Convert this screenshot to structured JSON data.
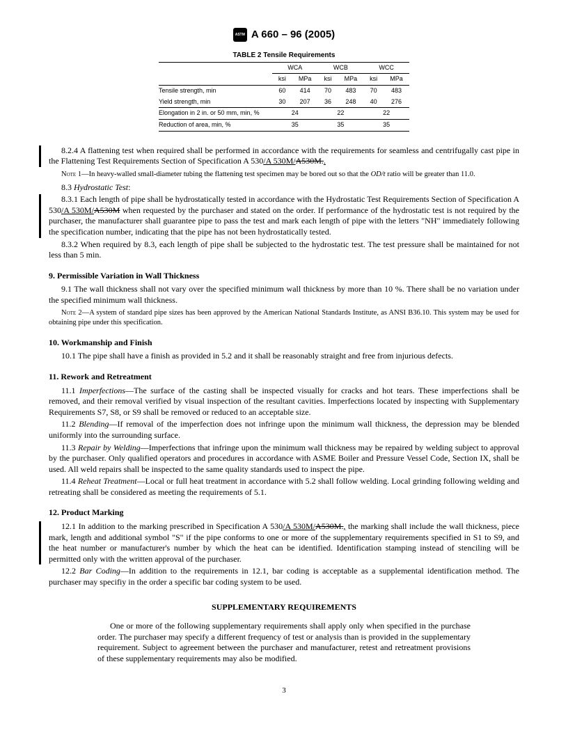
{
  "header": {
    "title": "A 660 – 96 (2005)"
  },
  "table": {
    "caption": "TABLE 2  Tensile Requirements",
    "group_headers": [
      "WCA",
      "WCB",
      "WCC"
    ],
    "sub_headers": [
      "ksi",
      "MPa",
      "ksi",
      "MPa",
      "ksi",
      "MPa"
    ],
    "rows": [
      {
        "label": "Tensile strength, min",
        "values": [
          "60",
          "414",
          "70",
          "483",
          "70",
          "483"
        ]
      },
      {
        "label": "Yield strength, min",
        "values": [
          "30",
          "207",
          "36",
          "248",
          "40",
          "276"
        ]
      }
    ],
    "span_rows": [
      {
        "label": "Elongation in 2 in. or 50 mm, min, %",
        "values": [
          "24",
          "22",
          "22"
        ]
      },
      {
        "label": "Reduction of area, min, %",
        "values": [
          "35",
          "35",
          "35"
        ]
      }
    ]
  },
  "p824": {
    "prefix": "8.2.4 A flattening test when required shall be performed in accordance with the requirements for seamless and centrifugally cast pipe in the Flattening Test Requirements Section of Specification A 530",
    "under": "/A 530M/",
    "strike": "A530M.",
    "suffix": "."
  },
  "note1": {
    "label": "Note",
    "num": " 1—",
    "text": "In heavy-walled small-diameter tubing the flattening test specimen may be bored out so that the ",
    "italic": "OD/t",
    "text2": " ratio will be greater than 11.0."
  },
  "p83": {
    "num": "8.3 ",
    "title": "Hydrostatic Test",
    "colon": ":"
  },
  "p831": {
    "prefix": "8.3.1 Each length of pipe shall be hydrostatically tested in accordance with the Hydrostatic Test Requirements Section of Specification A 530",
    "under": "/A 530M/",
    "strike": "A530M",
    "suffix": " when requested by the purchaser and stated on the order. If performance of the hydrostatic test is not required by the purchaser, the manufacturer shall guarantee pipe to pass the test and mark each length of pipe with the letters \"NH\" immediately following the specification number, indicating that the pipe has not been hydrostatically tested."
  },
  "p832": "8.3.2 When required by 8.3, each length of pipe shall be subjected to the hydrostatic test. The test pressure shall be maintained for not less than 5 min.",
  "s9": {
    "heading": "9.  Permissible Variation in Wall Thickness",
    "p91": "9.1 The wall thickness shall not vary over the specified minimum wall thickness by more than 10 %. There shall be no variation under the specified minimum wall thickness."
  },
  "note2": {
    "label": "Note",
    "num": " 2—",
    "text": "A system of standard pipe sizes has been approved by the American National Standards Institute, as ANSI B36.10. This system may be used for obtaining pipe under this specification."
  },
  "s10": {
    "heading": "10. Workmanship and Finish",
    "p101": "10.1 The pipe shall have a finish as provided in 5.2 and it shall be reasonably straight and free from injurious defects."
  },
  "s11": {
    "heading": "11.  Rework and Retreatment",
    "p111": {
      "num": "11.1 ",
      "title": "Imperfections",
      "text": "—The surface of the casting shall be inspected visually for cracks and hot tears. These imperfections shall be removed, and their removal verified by visual inspection of the resultant cavities. Imperfections located by inspecting with Supplementary Requirements S7, S8, or S9 shall be removed or reduced to an acceptable size."
    },
    "p112": {
      "num": "11.2 ",
      "title": "Blending",
      "text": "—If removal of the imperfection does not infringe upon the minimum wall thickness, the depression may be blended uniformly into the surrounding surface."
    },
    "p113": {
      "num": "11.3 ",
      "title": "Repair by Welding",
      "text": "—Imperfections that infringe upon the minimum wall thickness may be repaired by welding subject to approval by the purchaser. Only qualified operators and procedures in accordance with ASME Boiler and Pressure Vessel Code, Section IX, shall be used. All weld repairs shall be inspected to the same quality standards used to inspect the pipe."
    },
    "p114": {
      "num": "11.4 ",
      "title": "Reheat Treatment",
      "text": "—Local or full heat treatment in accordance with 5.2 shall follow welding. Local grinding following welding and retreating shall be considered as meeting the requirements of 5.1."
    }
  },
  "s12": {
    "heading": "12.  Product Marking",
    "p121": {
      "prefix": "12.1 In addition to the marking prescribed in Specification A 530",
      "under": "/A 530M/",
      "strike": "A530M.",
      "under2": ",",
      "suffix": " the marking shall include the wall thickness, piece mark, length and additional symbol \"S\" if the pipe conforms to one or more of the supplementary requirements specified in S1 to S9, and the heat number or manufacturer's number by which the heat can be identified. Identification stamping instead of stenciling will be permitted only with the written approval of the purchaser."
    },
    "p122": {
      "num": "12.2 ",
      "title": "Bar Coding",
      "text": "—In addition to the requirements in 12.1, bar coding is acceptable as a supplemental identification method. The purchaser may specifiy in the order a specific bar coding system to be used."
    }
  },
  "supplementary": {
    "heading": "SUPPLEMENTARY REQUIREMENTS",
    "intro": "One or more of the following supplementary requirements shall apply only when specified in the purchase order. The purchaser may specify a different frequency of test or analysis than is provided in the supplementary requirement. Subject to agreement between the purchaser and manufacturer, retest and retreatment provisions of these supplementary requirements may also be modified."
  },
  "pageNumber": "3"
}
